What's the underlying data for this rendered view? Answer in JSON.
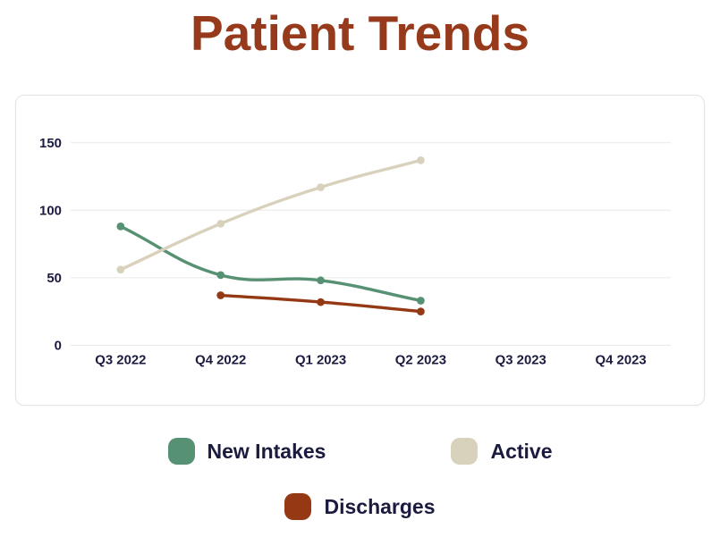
{
  "page": {
    "title": "Patient Trends"
  },
  "colors": {
    "title": "#963a1b",
    "axis_text": "#1b1b40",
    "legend_text": "#1b1b40",
    "gridline": "#ececec",
    "card_border": "#e3e3e3",
    "page_background": "#ffffff"
  },
  "chart_data": {
    "type": "line",
    "title": "Patient Trends",
    "categories": [
      "Q3 2022",
      "Q4 2022",
      "Q1 2023",
      "Q2 2023",
      "Q3 2023",
      "Q4 2023"
    ],
    "series": [
      {
        "name": "New Intakes",
        "color": "#579174",
        "values": [
          88,
          52,
          48,
          33,
          null,
          null
        ]
      },
      {
        "name": "Active",
        "color": "#d8d1bc",
        "values": [
          56,
          90,
          117,
          137,
          null,
          null
        ]
      },
      {
        "name": "Discharges",
        "color": "#943913",
        "values": [
          null,
          37,
          32,
          25,
          null,
          null
        ]
      }
    ],
    "yticks": [
      0,
      50,
      100,
      150
    ],
    "ylim": [
      0,
      150
    ],
    "xlabel": "",
    "ylabel": "",
    "grid": "horizontal-only",
    "legend_position": "bottom",
    "line_tension": 0.4
  }
}
